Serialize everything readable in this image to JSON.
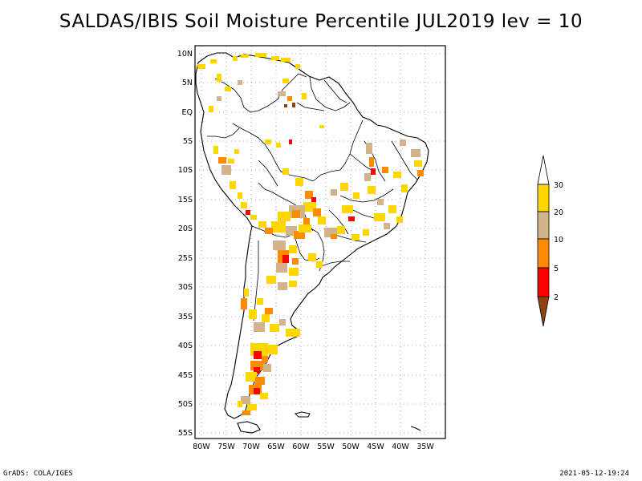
{
  "title": "SALDAS/IBIS Soil Moisture Percentile JUL2019 lev = 10",
  "map": {
    "lat_labels": [
      "10N",
      "5N",
      "EQ",
      "5S",
      "10S",
      "15S",
      "20S",
      "25S",
      "30S",
      "35S",
      "40S",
      "45S",
      "50S",
      "55S"
    ],
    "lon_labels": [
      "80W",
      "75W",
      "70W",
      "65W",
      "60W",
      "55W",
      "50W",
      "45W",
      "40W",
      "35W"
    ],
    "grid": "dotted",
    "lon_range": [
      "80W",
      "33W"
    ],
    "lat_range": [
      "56S",
      "12N"
    ]
  },
  "colorbar": {
    "labels": [
      "30",
      "20",
      "10",
      "5",
      "2"
    ],
    "colors": [
      "#ffd700",
      "#d2b48c",
      "#ff8c00",
      "#ff0000",
      "#8b4513"
    ],
    "top_cap_color": "#ffffff"
  },
  "footer": {
    "left": "GrADS: COLA/IGES",
    "right": "2021-05-12-19:24"
  }
}
